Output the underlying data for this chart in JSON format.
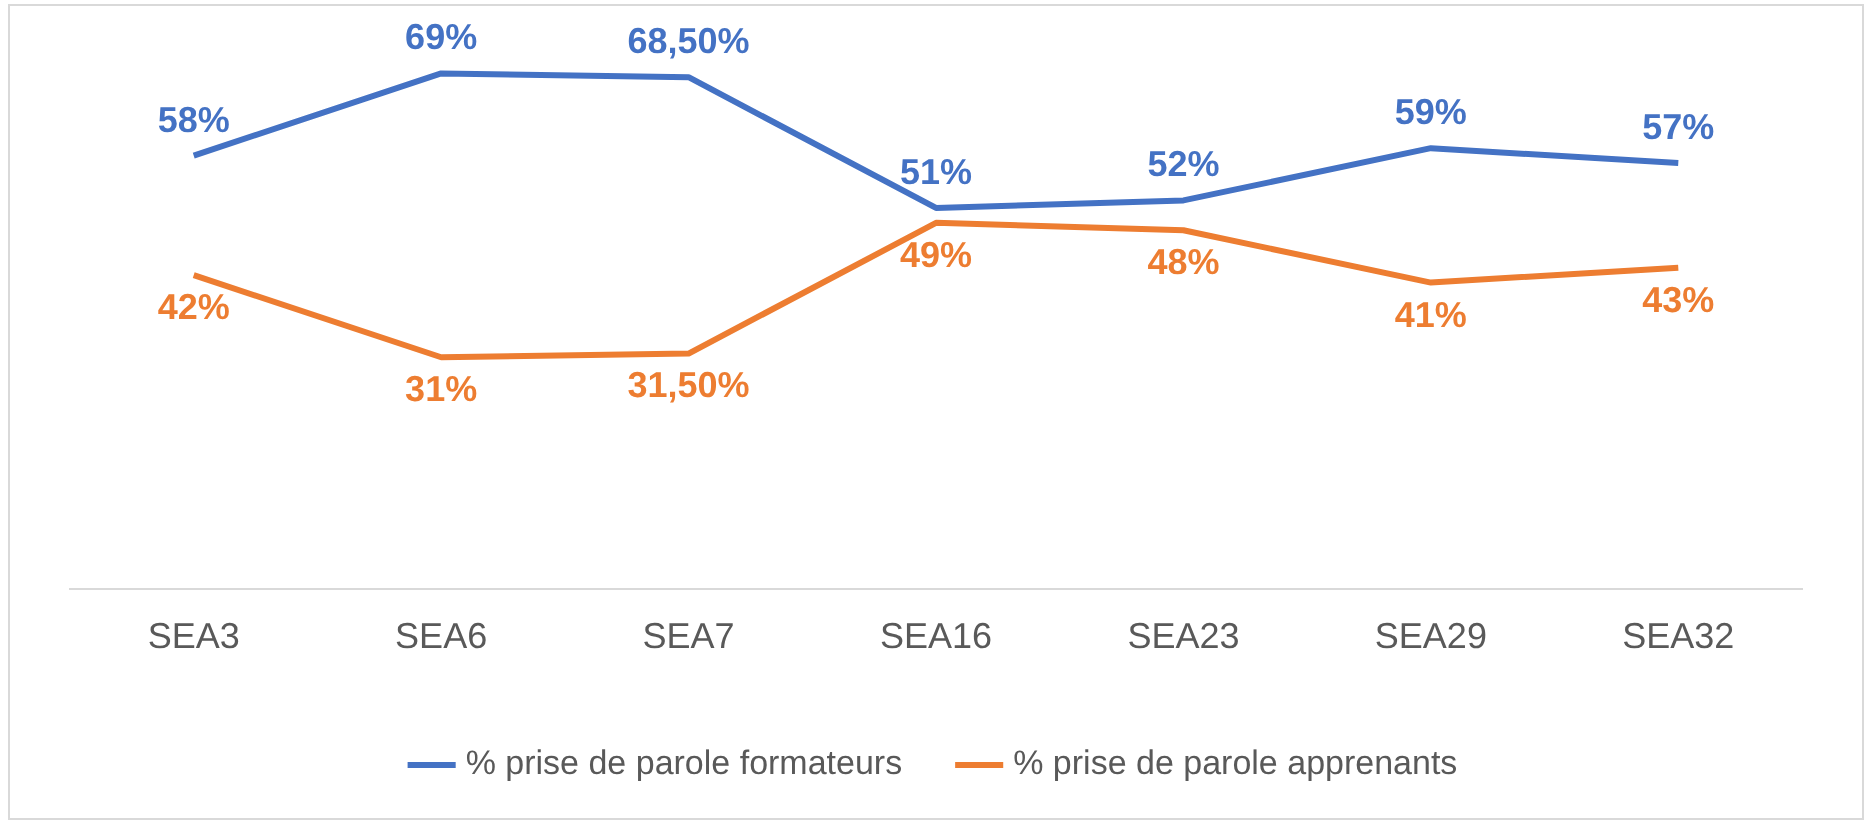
{
  "chart_data": {
    "type": "line",
    "categories": [
      "SEA3",
      "SEA6",
      "SEA7",
      "SEA16",
      "SEA23",
      "SEA29",
      "SEA32"
    ],
    "series": [
      {
        "name": "% prise de parole formateurs",
        "color": "#4472c4",
        "values": [
          58,
          69,
          68.5,
          51,
          52,
          59,
          57
        ],
        "value_labels": [
          "58%",
          "69%",
          "68,50%",
          "51%",
          "52%",
          "59%",
          "57%"
        ]
      },
      {
        "name": "% prise de parole apprenants",
        "color": "#ed7d31",
        "values": [
          42,
          31,
          31.5,
          49,
          48,
          41,
          43
        ],
        "value_labels": [
          "42%",
          "31%",
          "31,50%",
          "49%",
          "48%",
          "41%",
          "43%"
        ]
      }
    ],
    "grid": false,
    "legend": "bottom",
    "marker": "none",
    "line_style": "solid",
    "tick_labels": "x"
  }
}
